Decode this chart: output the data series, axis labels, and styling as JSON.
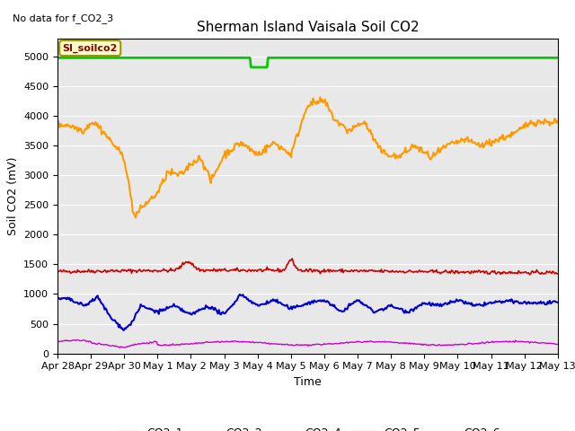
{
  "title": "Sherman Island Vaisala Soil CO2",
  "no_data_text": "No data for f_CO2_3",
  "ylabel": "Soil CO2 (mV)",
  "xlabel": "Time",
  "ylim": [
    0,
    5300
  ],
  "yticks": [
    0,
    500,
    1000,
    1500,
    2000,
    2500,
    3000,
    3500,
    4000,
    4500,
    5000
  ],
  "xtick_labels": [
    "Apr 28",
    "Apr 29",
    "Apr 30",
    "May 1",
    "May 2",
    "May 3",
    "May 4",
    "May 5",
    "May 6",
    "May 7",
    "May 8",
    "May 9",
    "May 10",
    "May 11",
    "May 12",
    "May 13"
  ],
  "legend_label": "SI_soilco2",
  "background_color": "#e8e8e8",
  "title_fontsize": 11,
  "label_fontsize": 9,
  "tick_fontsize": 8,
  "series": {
    "CO2_1": {
      "color": "#cc0000",
      "linewidth": 1.2
    },
    "CO2_2": {
      "color": "#ff9900",
      "linewidth": 1.5
    },
    "CO2_4": {
      "color": "#00cc00",
      "linewidth": 2.0
    },
    "CO2_5": {
      "color": "#0000cc",
      "linewidth": 1.5
    },
    "CO2_6": {
      "color": "#cc00cc",
      "linewidth": 1.0
    }
  }
}
